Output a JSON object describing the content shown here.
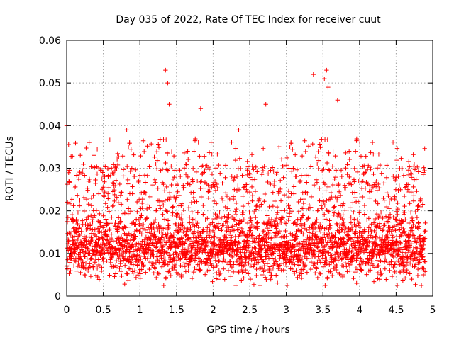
{
  "chart_data": {
    "type": "scatter",
    "title": "Day 035 of 2022, Rate Of TEC Index for receiver cuut",
    "xlabel": "GPS time / hours",
    "ylabel": "ROTI / TECUs",
    "xlim": [
      0,
      5
    ],
    "ylim": [
      0,
      0.06
    ],
    "xticks": [
      "0",
      "0.5",
      "1",
      "1.5",
      "2",
      "2.5",
      "3",
      "3.5",
      "4",
      "4.5",
      "5"
    ],
    "yticks": [
      "0",
      "0.01",
      "0.02",
      "0.03",
      "0.04",
      "0.05",
      "0.06"
    ],
    "grid": true,
    "marker": "+",
    "color": "#ff0000",
    "series": [
      {
        "name": "ROTI",
        "x_range": [
          0,
          4.9
        ],
        "typical_range": [
          0.005,
          0.018
        ],
        "notable_points": [
          [
            0.0,
            0.04
          ],
          [
            0.82,
            0.039
          ],
          [
            1.35,
            0.053
          ],
          [
            1.38,
            0.05
          ],
          [
            1.4,
            0.045
          ],
          [
            1.83,
            0.044
          ],
          [
            2.35,
            0.039
          ],
          [
            2.72,
            0.045
          ],
          [
            3.37,
            0.052
          ],
          [
            3.55,
            0.053
          ],
          [
            3.52,
            0.051
          ],
          [
            3.57,
            0.049
          ],
          [
            3.7,
            0.046
          ],
          [
            3.96,
            0.003
          ],
          [
            4.87,
            0.029
          ]
        ]
      }
    ]
  }
}
